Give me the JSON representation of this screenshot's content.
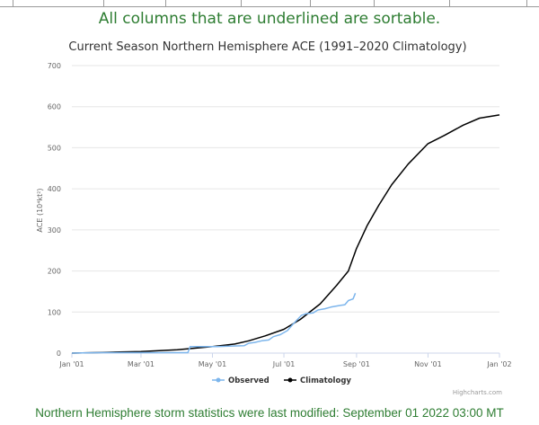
{
  "header": {
    "sortable_note": "All columns that are underlined are sortable."
  },
  "footer": {
    "modified_note": "Northern Hemisphere storm statistics were last modified: September 01 2022 03:00 MT"
  },
  "credit": "Highcharts.com",
  "chart_data": {
    "type": "line",
    "title": "Current Season Northern Hemisphere ACE (1991–2020 Climatology)",
    "ylabel": "ACE (10⁴kt²)",
    "xlabel": "",
    "ylim": [
      0,
      700
    ],
    "yticks": [
      0,
      100,
      200,
      300,
      400,
      500,
      600,
      700
    ],
    "xlim": [
      "2022-01-01",
      "2023-01-01"
    ],
    "xticks": [
      {
        "date": "2022-01-01",
        "label": "Jan '01"
      },
      {
        "date": "2022-03-01",
        "label": "Mar '01"
      },
      {
        "date": "2022-05-01",
        "label": "May '01"
      },
      {
        "date": "2022-07-01",
        "label": "Jul '01"
      },
      {
        "date": "2022-09-01",
        "label": "Sep '01"
      },
      {
        "date": "2022-11-01",
        "label": "Nov '01"
      },
      {
        "date": "2023-01-01",
        "label": "Jan '02"
      }
    ],
    "grid": true,
    "legend_position": "bottom-center",
    "series": [
      {
        "name": "Observed",
        "color": "#7cb5ec",
        "points": [
          [
            "2022-01-01",
            0
          ],
          [
            "2022-01-10",
            0.5
          ],
          [
            "2022-01-25",
            1
          ],
          [
            "2022-02-10",
            1
          ],
          [
            "2022-02-28",
            1
          ],
          [
            "2022-03-20",
            1
          ],
          [
            "2022-04-10",
            1
          ],
          [
            "2022-04-12",
            16
          ],
          [
            "2022-04-25",
            16
          ],
          [
            "2022-05-05",
            16
          ],
          [
            "2022-05-15",
            17
          ],
          [
            "2022-05-28",
            18
          ],
          [
            "2022-06-01",
            24
          ],
          [
            "2022-06-06",
            26
          ],
          [
            "2022-06-12",
            30
          ],
          [
            "2022-06-18",
            32
          ],
          [
            "2022-06-22",
            40
          ],
          [
            "2022-06-28",
            45
          ],
          [
            "2022-07-04",
            55
          ],
          [
            "2022-07-08",
            68
          ],
          [
            "2022-07-12",
            80
          ],
          [
            "2022-07-16",
            92
          ],
          [
            "2022-07-20",
            96
          ],
          [
            "2022-07-26",
            98
          ],
          [
            "2022-07-30",
            105
          ],
          [
            "2022-08-05",
            108
          ],
          [
            "2022-08-10",
            112
          ],
          [
            "2022-08-16",
            115
          ],
          [
            "2022-08-22",
            118
          ],
          [
            "2022-08-25",
            128
          ],
          [
            "2022-08-29",
            132
          ],
          [
            "2022-08-31",
            146
          ]
        ]
      },
      {
        "name": "Climatology",
        "color": "#000000",
        "points": [
          [
            "2022-01-01",
            0
          ],
          [
            "2022-02-01",
            2
          ],
          [
            "2022-03-01",
            4
          ],
          [
            "2022-04-01",
            8
          ],
          [
            "2022-05-01",
            16
          ],
          [
            "2022-05-20",
            22
          ],
          [
            "2022-06-01",
            30
          ],
          [
            "2022-06-15",
            42
          ],
          [
            "2022-07-01",
            58
          ],
          [
            "2022-07-15",
            82
          ],
          [
            "2022-08-01",
            120
          ],
          [
            "2022-08-15",
            165
          ],
          [
            "2022-08-25",
            200
          ],
          [
            "2022-09-01",
            255
          ],
          [
            "2022-09-10",
            310
          ],
          [
            "2022-09-20",
            360
          ],
          [
            "2022-10-01",
            410
          ],
          [
            "2022-10-15",
            460
          ],
          [
            "2022-11-01",
            510
          ],
          [
            "2022-11-15",
            530
          ],
          [
            "2022-12-01",
            555
          ],
          [
            "2022-12-15",
            572
          ],
          [
            "2023-01-01",
            580
          ]
        ]
      }
    ]
  }
}
